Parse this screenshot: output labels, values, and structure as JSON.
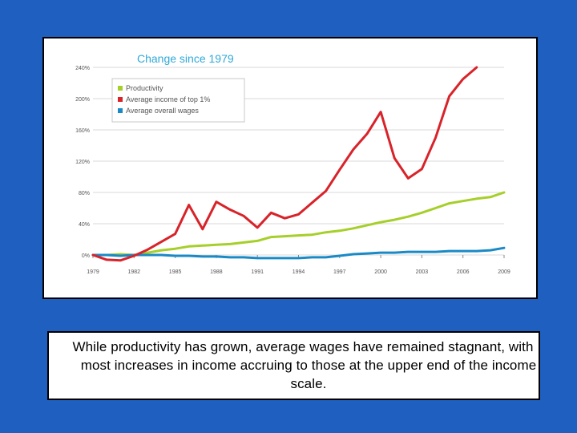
{
  "colors": {
    "background": "#1f5fbf",
    "productivity": "#a6cf2a",
    "top1": "#d8232a",
    "wages": "#1a8ac6",
    "title": "#2fa9d9",
    "grid": "#d8d8d8",
    "axis_text": "#555555"
  },
  "chart_data": {
    "type": "line",
    "title": "Change since 1979",
    "xlabel": "",
    "ylabel": "",
    "xlim": [
      1979,
      2009
    ],
    "ylim": [
      0,
      240
    ],
    "x_ticks": [
      1979,
      1982,
      1985,
      1988,
      1991,
      1994,
      1997,
      2000,
      2003,
      2006,
      2009
    ],
    "y_ticks": [
      0,
      40,
      80,
      120,
      160,
      200,
      240
    ],
    "y_tick_labels": [
      "0%",
      "40%",
      "80%",
      "120%",
      "160%",
      "200%",
      "240%"
    ],
    "grid": true,
    "legend_position": "top-left",
    "series": [
      {
        "name": "Productivity",
        "color": "#a6cf2a",
        "x": [
          1979,
          1980,
          1981,
          1982,
          1983,
          1984,
          1985,
          1986,
          1987,
          1988,
          1989,
          1990,
          1991,
          1992,
          1993,
          1994,
          1995,
          1996,
          1997,
          1998,
          1999,
          2000,
          2001,
          2002,
          2003,
          2004,
          2005,
          2006,
          2007,
          2008,
          2009
        ],
        "values": [
          0,
          0,
          1,
          0,
          3,
          6,
          8,
          11,
          12,
          13,
          14,
          16,
          18,
          23,
          24,
          25,
          26,
          29,
          31,
          34,
          38,
          42,
          45,
          49,
          54,
          60,
          66,
          69,
          72,
          74,
          80
        ]
      },
      {
        "name": "Average income of top 1%",
        "color": "#d8232a",
        "x": [
          1979,
          1980,
          1981,
          1982,
          1983,
          1984,
          1985,
          1986,
          1987,
          1988,
          1989,
          1990,
          1991,
          1992,
          1993,
          1994,
          1995,
          1996,
          1997,
          1998,
          1999,
          2000,
          2001,
          2002,
          2003,
          2004,
          2005,
          2006,
          2007
        ],
        "values": [
          0,
          -6,
          -7,
          -1,
          7,
          17,
          27,
          64,
          33,
          68,
          58,
          50,
          35,
          54,
          47,
          52,
          67,
          82,
          109,
          135,
          155,
          183,
          124,
          98,
          110,
          150,
          203,
          225,
          240
        ]
      },
      {
        "name": "Average overall wages",
        "color": "#1a8ac6",
        "x": [
          1979,
          1980,
          1981,
          1982,
          1983,
          1984,
          1985,
          1986,
          1987,
          1988,
          1989,
          1990,
          1991,
          1992,
          1993,
          1994,
          1995,
          1996,
          1997,
          1998,
          1999,
          2000,
          2001,
          2002,
          2003,
          2004,
          2005,
          2006,
          2007,
          2008,
          2009
        ],
        "values": [
          0,
          0,
          -1,
          0,
          0,
          0,
          -1,
          -1,
          -2,
          -2,
          -3,
          -3,
          -4,
          -4,
          -4,
          -4,
          -3,
          -3,
          -1,
          1,
          2,
          3,
          3,
          4,
          4,
          4,
          5,
          5,
          5,
          6,
          9
        ]
      }
    ]
  },
  "caption": "While productivity has grown, average wages have remained stagnant, with most increases in income accruing to those at the upper end of the income scale."
}
